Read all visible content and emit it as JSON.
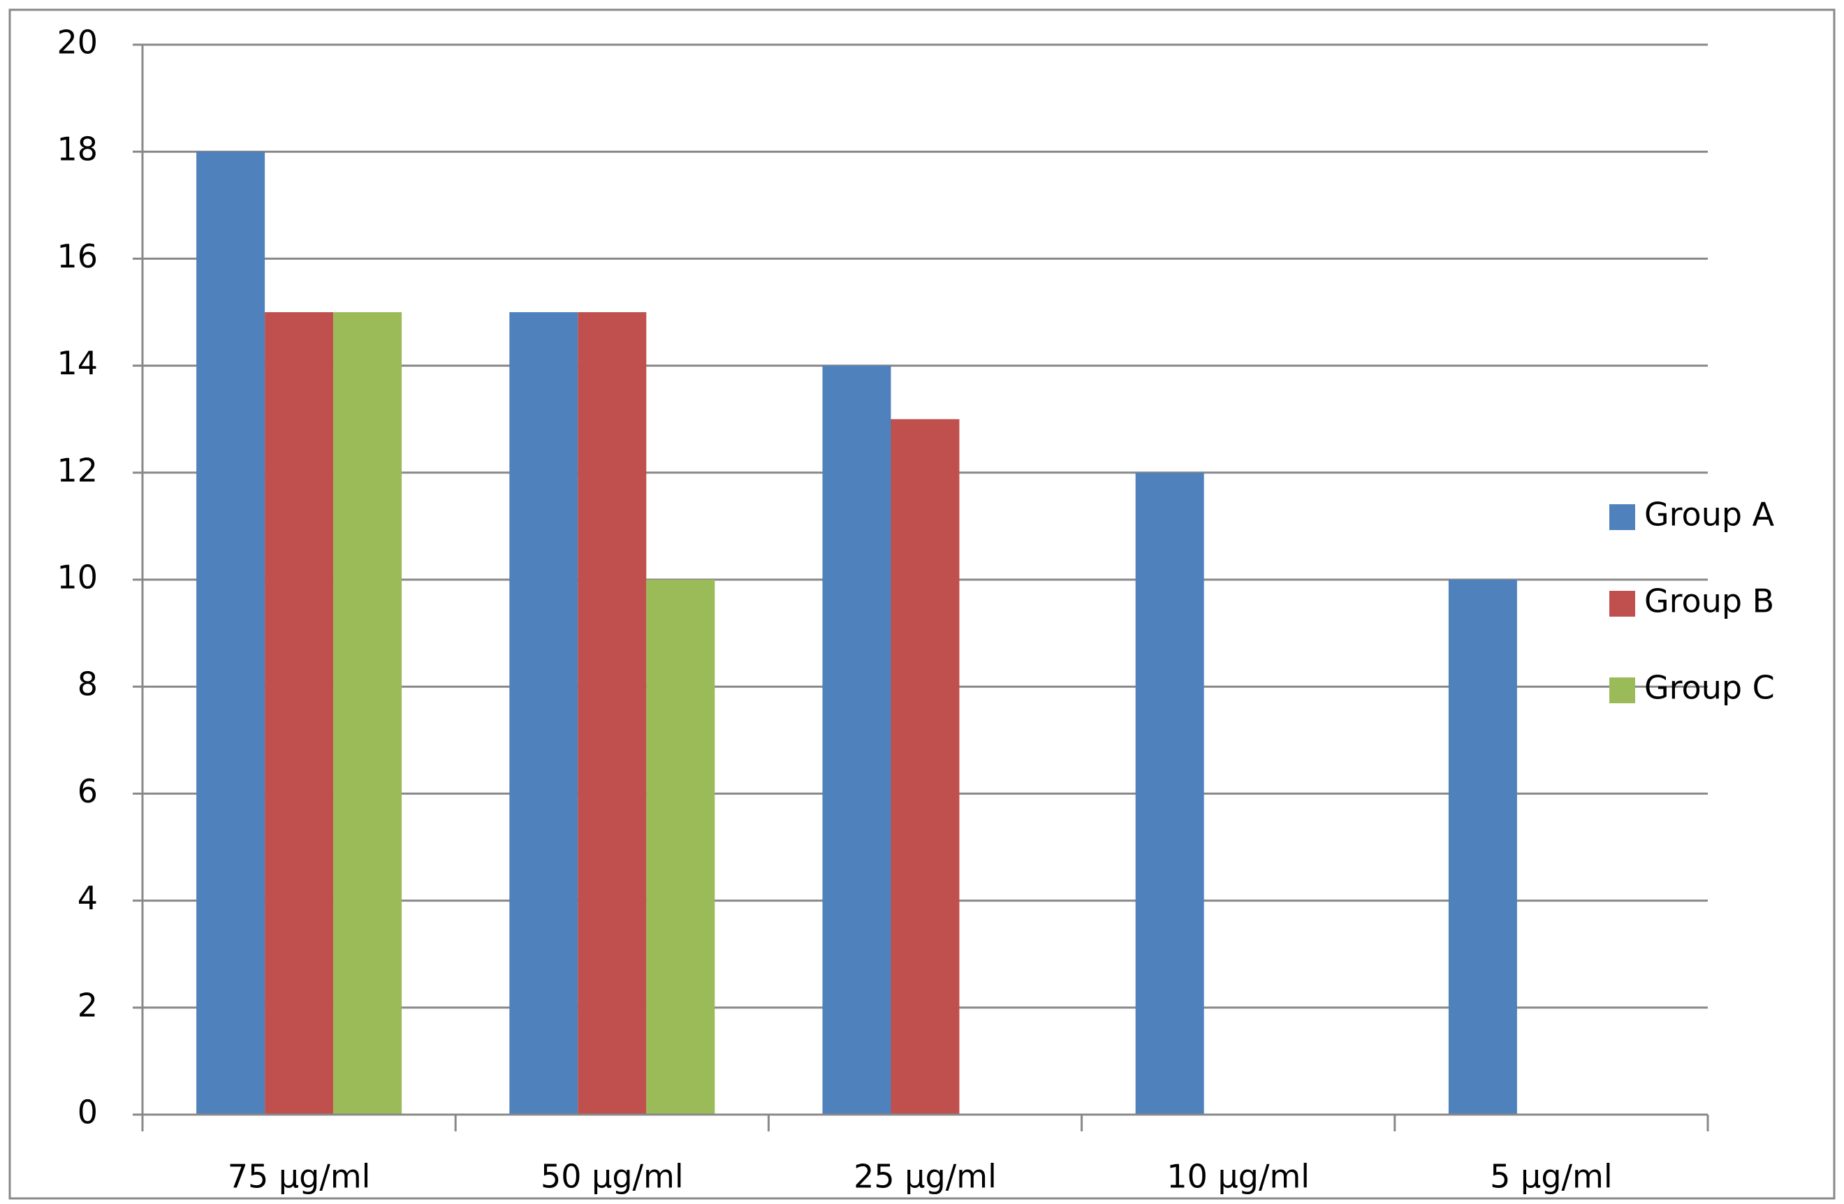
{
  "chart_data": {
    "type": "bar",
    "categories": [
      "75 µg/ml",
      "50 µg/ml",
      "25 µg/ml",
      "10 µg/ml",
      "5 µg/ml"
    ],
    "series": [
      {
        "name": "Group A",
        "color": "#4f81bd",
        "values": [
          18,
          15,
          14,
          12,
          10
        ]
      },
      {
        "name": "Group B",
        "color": "#c0504d",
        "values": [
          15,
          15,
          13,
          0,
          0
        ]
      },
      {
        "name": "Group C",
        "color": "#9bbb59",
        "values": [
          15,
          10,
          0,
          0,
          0
        ]
      }
    ],
    "ylim": [
      0,
      20
    ],
    "yticks": [
      0,
      2,
      4,
      6,
      8,
      10,
      12,
      14,
      16,
      18,
      20
    ],
    "grid": true,
    "legend": "right"
  }
}
